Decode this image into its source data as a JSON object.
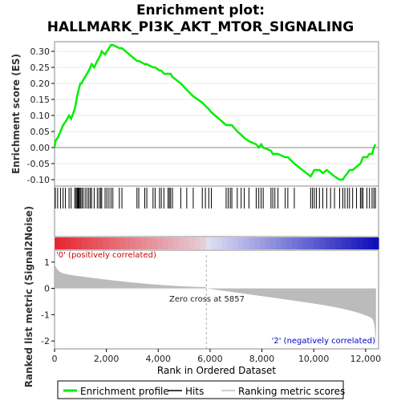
{
  "chart_data": {
    "type": "line",
    "title_line1": "Enrichment plot:",
    "title_line2": "HALLMARK_PI3K_AKT_MTOR_SIGNALING",
    "ylabel_top": "Enrichment score (ES)",
    "ylabel_bottom": "Ranked list metric (Signal2Noise)",
    "xlabel": "Rank in Ordered Dataset",
    "es_yticks": [
      "0.30",
      "0.25",
      "0.20",
      "0.15",
      "0.10",
      "0.05",
      "0.00",
      "-0.05",
      "-0.10"
    ],
    "es_ylim": [
      -0.12,
      0.33
    ],
    "metric_yticks": [
      "1",
      "0",
      "-1",
      "-2"
    ],
    "metric_ylim": [
      -2.3,
      1.45
    ],
    "xticks": [
      "0",
      "2,000",
      "4,000",
      "6,000",
      "8,000",
      "10,000",
      "12,000"
    ],
    "xlim": [
      0,
      12500
    ],
    "n_genes": 12400,
    "zero_cross_label": "Zero cross at 5857",
    "zero_cross": 5857,
    "pos_label": "'0' (positively correlated)",
    "neg_label": "'2' (negatively correlated)",
    "legend": [
      "Enrichment profile",
      "Hits",
      "Ranking metric scores"
    ],
    "colors": {
      "profile": "#00ee00",
      "pos_label": "#cc0000",
      "neg_label": "#0000cc",
      "metric": "#bbbbbb"
    },
    "hits": [
      30,
      120,
      230,
      330,
      420,
      560,
      640,
      780,
      830,
      870,
      900,
      930,
      960,
      1000,
      1050,
      1100,
      1180,
      1250,
      1320,
      1380,
      1430,
      1530,
      1650,
      1720,
      1780,
      1820,
      1950,
      2020,
      2100,
      2180,
      2250,
      2500,
      2600,
      3180,
      3250,
      3480,
      3560,
      3800,
      3880,
      4050,
      4120,
      4220,
      4380,
      4430,
      4480,
      4550,
      4870,
      5100,
      5350,
      5700,
      5820,
      5950,
      6050,
      6620,
      6700,
      6780,
      6840,
      7050,
      7200,
      7320,
      7500,
      7780,
      7880,
      7970,
      8050,
      8350,
      8420,
      8500,
      8620,
      8900,
      9000,
      9250,
      9880,
      9950,
      10020,
      10100,
      10220,
      10350,
      10500,
      10650,
      10800,
      11000,
      11120,
      11200,
      11300,
      11380,
      11500,
      11650,
      11800,
      11850,
      11900,
      12050,
      12150,
      12250,
      12320,
      12380
    ],
    "es_x": [
      0,
      30,
      120,
      230,
      330,
      420,
      560,
      640,
      780,
      830,
      870,
      900,
      930,
      960,
      1000,
      1050,
      1100,
      1180,
      1250,
      1320,
      1380,
      1430,
      1530,
      1650,
      1720,
      1780,
      1820,
      1950,
      2020,
      2100,
      2180,
      2250,
      2500,
      2600,
      3180,
      3250,
      3480,
      3560,
      3800,
      3880,
      4050,
      4120,
      4220,
      4380,
      4430,
      4480,
      4550,
      4870,
      5100,
      5350,
      5700,
      5820,
      5950,
      6050,
      6620,
      6700,
      6780,
      6840,
      7050,
      7200,
      7320,
      7500,
      7780,
      7880,
      7970,
      8050,
      8350,
      8420,
      8500,
      8620,
      8900,
      9000,
      9250,
      9880,
      9950,
      10020,
      10100,
      10220,
      10350,
      10500,
      10650,
      10800,
      11000,
      11120,
      11200,
      11300,
      11380,
      11500,
      11650,
      11800,
      11850,
      11900,
      12050,
      12150,
      12250,
      12320,
      12380
    ],
    "es_y": [
      0.0,
      0.02,
      0.03,
      0.05,
      0.07,
      0.08,
      0.1,
      0.09,
      0.12,
      0.14,
      0.16,
      0.17,
      0.18,
      0.19,
      0.2,
      0.2,
      0.21,
      0.22,
      0.23,
      0.24,
      0.25,
      0.26,
      0.25,
      0.27,
      0.28,
      0.29,
      0.3,
      0.29,
      0.3,
      0.31,
      0.32,
      0.32,
      0.31,
      0.31,
      0.27,
      0.27,
      0.26,
      0.26,
      0.25,
      0.25,
      0.24,
      0.24,
      0.23,
      0.23,
      0.23,
      0.23,
      0.22,
      0.2,
      0.18,
      0.16,
      0.14,
      0.13,
      0.12,
      0.11,
      0.07,
      0.07,
      0.07,
      0.07,
      0.05,
      0.04,
      0.03,
      0.02,
      0.01,
      0.0,
      0.01,
      0.0,
      -0.01,
      -0.02,
      -0.02,
      -0.02,
      -0.03,
      -0.03,
      -0.05,
      -0.09,
      -0.08,
      -0.07,
      -0.07,
      -0.07,
      -0.08,
      -0.07,
      -0.08,
      -0.09,
      -0.1,
      -0.1,
      -0.09,
      -0.08,
      -0.07,
      -0.07,
      -0.06,
      -0.05,
      -0.04,
      -0.03,
      -0.03,
      -0.02,
      -0.02,
      0.0,
      0.01
    ]
  }
}
